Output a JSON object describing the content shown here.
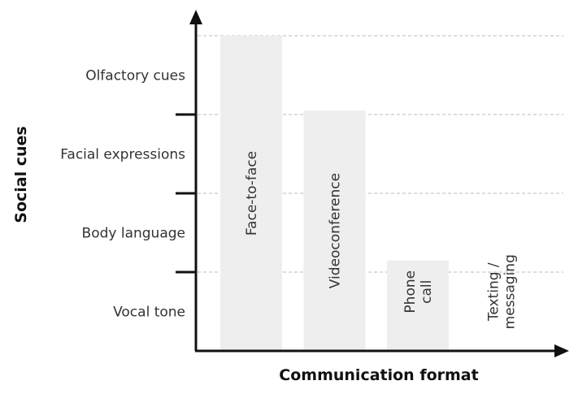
{
  "chart_data": {
    "type": "bar",
    "xlabel": "Communication format",
    "ylabel": "Social cues",
    "categories": [
      "Face-to-face",
      "Videoconference",
      "Phone call",
      "Texting / messaging"
    ],
    "category_lines": [
      [
        "Face-to-face"
      ],
      [
        "Videoconference"
      ],
      [
        "Phone",
        "call"
      ],
      [
        "Texting /",
        "messaging"
      ]
    ],
    "values": [
      4,
      3.05,
      1.15,
      0
    ],
    "y_levels": [
      "Vocal tone",
      "Body language",
      "Facial expressions",
      "Olfactory cues"
    ],
    "ylim": [
      0,
      4.3
    ],
    "grid": true,
    "legend": "none",
    "colors": {
      "bar": "#eeeeee",
      "axis": "#111111",
      "grid": "#bbbbbb",
      "text": "#333333"
    }
  }
}
